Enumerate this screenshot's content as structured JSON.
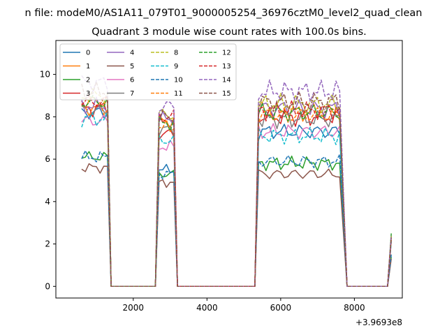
{
  "figure_title": "n file: modeM0/AS1A11_079T01_9000005254_36976cztM0_level2_quad_clean",
  "chart_data": {
    "type": "line",
    "title": "Quadrant 3 module wise count rates with 100.0s bins.",
    "xlabel": "",
    "ylabel": "",
    "x_offset_label": "+3.9693e8",
    "xlim": [
      -100,
      9300
    ],
    "ylim": [
      -0.55,
      11.6
    ],
    "x_ticks": [
      2000,
      4000,
      6000,
      8000
    ],
    "y_ticks": [
      0,
      2,
      4,
      6,
      8,
      10
    ],
    "x_tick_labels": [
      "2000",
      "4000",
      "6000",
      "8000"
    ],
    "y_tick_labels": [
      "0",
      "2",
      "4",
      "6",
      "8",
      "10"
    ],
    "grid": false,
    "legend_position": "top-left",
    "legend_columns": 4,
    "segments": [
      {
        "x_start": 600,
        "x_end": 1300,
        "drop_x": 1400
      },
      {
        "x_start": 2600,
        "x_end": 3100,
        "drop_x": 3200,
        "rise_x": 2700
      },
      {
        "x_start": 5400,
        "x_end": 7600,
        "drop_x": 7800,
        "rise_x": 5300
      },
      {
        "x_start": 8900,
        "x_end": 9000,
        "rise_x": 8900
      }
    ],
    "series": [
      {
        "name": "0",
        "color": "#1f77b4",
        "dash": false,
        "seg_levels": [
          8.2,
          5.5,
          7.3,
          2.4
        ],
        "end_value": 2.4
      },
      {
        "name": "1",
        "color": "#ff7f0e",
        "dash": false,
        "seg_levels": [
          8.7,
          7.8,
          8.2,
          2.3
        ],
        "end_value": 2.3
      },
      {
        "name": "2",
        "color": "#2ca02c",
        "dash": false,
        "seg_levels": [
          6.1,
          5.3,
          5.8,
          1.4
        ],
        "end_value": 1.4
      },
      {
        "name": "3",
        "color": "#d62728",
        "dash": false,
        "seg_levels": [
          8.4,
          7.2,
          8.0,
          2.2
        ],
        "end_value": 2.2
      },
      {
        "name": "4",
        "color": "#9467bd",
        "dash": false,
        "seg_levels": [
          8.5,
          7.9,
          8.4,
          2.2
        ],
        "end_value": 2.2
      },
      {
        "name": "5",
        "color": "#8c564b",
        "dash": false,
        "seg_levels": [
          5.6,
          4.9,
          5.3,
          1.3
        ],
        "end_value": 1.3
      },
      {
        "name": "6",
        "color": "#e377c2",
        "dash": false,
        "seg_levels": [
          7.8,
          6.6,
          7.3,
          2.1
        ],
        "end_value": 2.1
      },
      {
        "name": "7",
        "color": "#7f7f7f",
        "dash": false,
        "seg_levels": [
          8.3,
          7.4,
          7.9,
          2.2
        ],
        "end_value": 2.2
      },
      {
        "name": "8",
        "color": "#bcbd22",
        "dash": true,
        "seg_levels": [
          9.0,
          8.1,
          8.6,
          2.4
        ],
        "end_value": 2.4
      },
      {
        "name": "9",
        "color": "#17becf",
        "dash": true,
        "seg_levels": [
          7.9,
          6.9,
          7.1,
          2.1
        ],
        "end_value": 2.1
      },
      {
        "name": "10",
        "color": "#1f77b4",
        "dash": true,
        "seg_levels": [
          6.1,
          5.3,
          5.9,
          1.5
        ],
        "end_value": 1.5
      },
      {
        "name": "11",
        "color": "#ff7f0e",
        "dash": true,
        "seg_levels": [
          8.4,
          7.5,
          8.1,
          2.2
        ],
        "end_value": 2.2
      },
      {
        "name": "12",
        "color": "#2ca02c",
        "dash": true,
        "seg_levels": [
          8.7,
          7.7,
          8.2,
          2.5
        ],
        "end_value": 2.5
      },
      {
        "name": "13",
        "color": "#d62728",
        "dash": true,
        "seg_levels": [
          8.7,
          8.0,
          8.3,
          2.3
        ],
        "end_value": 2.3
      },
      {
        "name": "14",
        "color": "#9467bd",
        "dash": true,
        "seg_levels": [
          9.6,
          8.5,
          9.2,
          2.4
        ],
        "end_value": 2.4
      },
      {
        "name": "15",
        "color": "#8c564b",
        "dash": true,
        "seg_levels": [
          9.2,
          8.0,
          8.7,
          2.3
        ],
        "end_value": 2.3
      }
    ]
  }
}
